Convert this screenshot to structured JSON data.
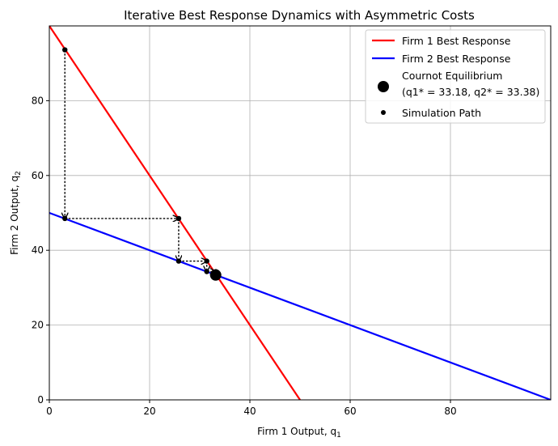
{
  "chart_data": {
    "type": "line",
    "title": "Iterative Best Response Dynamics with Asymmetric Costs",
    "xlabel": "Firm 1 Output, q",
    "xlabel_sub": "1",
    "ylabel": "Firm 2 Output, q",
    "ylabel_sub": "2",
    "xlim": [
      0,
      100
    ],
    "ylim": [
      0,
      100
    ],
    "xticks": [
      0,
      20,
      40,
      60,
      80
    ],
    "yticks": [
      0,
      20,
      40,
      60,
      80
    ],
    "grid": true,
    "legend_position": "top-right",
    "series": [
      {
        "name": "Firm 1 Best Response",
        "kind": "line",
        "color": "#ff0000",
        "x": [
          50,
          0
        ],
        "y": [
          0,
          100
        ]
      },
      {
        "name": "Firm 2 Best Response",
        "kind": "line",
        "color": "#0000ff",
        "x": [
          0,
          100
        ],
        "y": [
          50,
          0
        ]
      },
      {
        "name": "Cournot Equilibrium",
        "name_line2": "(q1* = 33.18, q2* = 33.38)",
        "kind": "point",
        "color": "#000000",
        "x": [
          33.18
        ],
        "y": [
          33.38
        ]
      },
      {
        "name": "Simulation Path",
        "kind": "path",
        "color": "#000000",
        "x": [
          3.1,
          3.1,
          25.8,
          25.8,
          31.4,
          31.4,
          33.2
        ],
        "y": [
          93.6,
          48.5,
          48.5,
          37.1,
          37.1,
          34.3,
          34.3
        ]
      }
    ]
  }
}
